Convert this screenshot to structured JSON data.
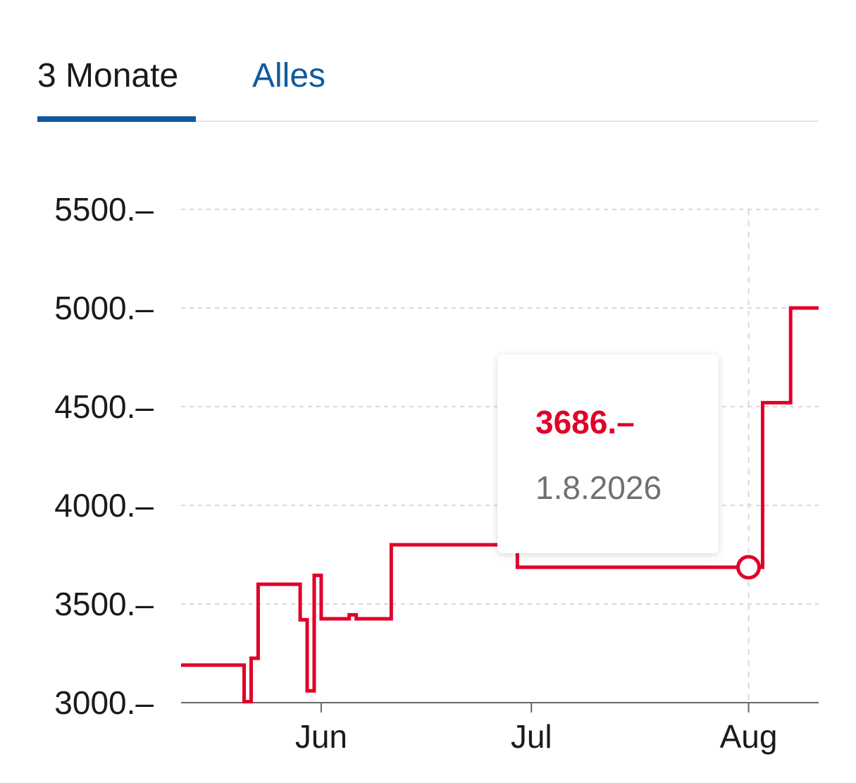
{
  "tabs": [
    {
      "label": "3 Monate",
      "active": true
    },
    {
      "label": "Alles",
      "active": false
    }
  ],
  "tooltip": {
    "value": "3686.–",
    "date": "1.8.2026"
  },
  "colors": {
    "line": "#e0002a",
    "accent": "#0f5a9c",
    "grid": "#d9d9d9",
    "axis": "#666666"
  },
  "chart_data": {
    "type": "line",
    "step": true,
    "ylim": [
      3000,
      5500
    ],
    "y_ticks": [
      {
        "value": 3000,
        "label": "3000.–"
      },
      {
        "value": 3500,
        "label": "3500.–"
      },
      {
        "value": 4000,
        "label": "4000.–"
      },
      {
        "value": 4500,
        "label": "4500.–"
      },
      {
        "value": 5000,
        "label": "5000.–"
      },
      {
        "value": 5500,
        "label": "5500.–"
      }
    ],
    "xlim": [
      "2026-05-12",
      "2026-08-11"
    ],
    "x_ticks": [
      {
        "date": "2026-06-01",
        "label": "Jun"
      },
      {
        "date": "2026-07-01",
        "label": "Jul"
      },
      {
        "date": "2026-08-01",
        "label": "Aug"
      }
    ],
    "grid": true,
    "crosshair_date": "2026-08-01",
    "series": [
      {
        "points": [
          {
            "date": "2026-05-12",
            "y": 3190
          },
          {
            "date": "2026-05-21",
            "y": 3005
          },
          {
            "date": "2026-05-22",
            "y": 3225
          },
          {
            "date": "2026-05-23",
            "y": 3600
          },
          {
            "date": "2026-05-29",
            "y": 3420
          },
          {
            "date": "2026-05-30",
            "y": 3060
          },
          {
            "date": "2026-05-31",
            "y": 3645
          },
          {
            "date": "2026-06-01",
            "y": 3425
          },
          {
            "date": "2026-06-05",
            "y": 3445
          },
          {
            "date": "2026-06-06",
            "y": 3425
          },
          {
            "date": "2026-06-11",
            "y": 3800
          },
          {
            "date": "2026-06-29",
            "y": 3686
          },
          {
            "date": "2026-08-03",
            "y": 4520
          },
          {
            "date": "2026-08-07",
            "y": 5000
          },
          {
            "date": "2026-08-11",
            "y": 5000
          }
        ]
      }
    ],
    "highlight_point": {
      "date": "2026-08-01",
      "y": 3686
    }
  }
}
